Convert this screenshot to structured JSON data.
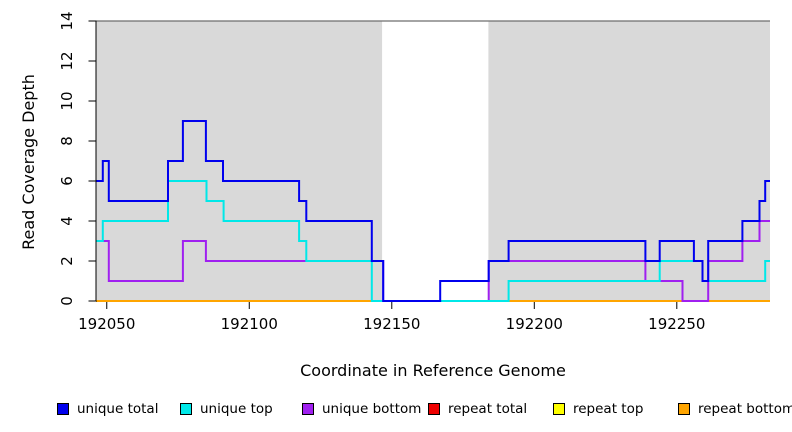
{
  "chart_data": {
    "type": "line",
    "subtype": "step-coverage-plot",
    "title": "",
    "xlabel": "Coordinate in Reference Genome",
    "ylabel": "Read Coverage Depth",
    "xlim": [
      192046.4,
      192282.7
    ],
    "ylim": [
      0,
      14
    ],
    "x_ticks": [
      192050,
      192100,
      192150,
      192200,
      192250
    ],
    "y_ticks": [
      0,
      2,
      4,
      6,
      8,
      10,
      12,
      14
    ],
    "grid": false,
    "legend_position": "bottom",
    "panel_background": "#d9d9d9",
    "unshaded_region": {
      "x_start": 192146.6,
      "x_end": 192183.9,
      "fill": "#ffffff"
    },
    "top_boundary_line": {
      "y": 14,
      "color": "#6e6e6e"
    },
    "axis_color": "#000000",
    "draw_order": [
      "repeat total",
      "repeat top",
      "repeat bottom",
      "unique bottom",
      "unique top",
      "unique total"
    ],
    "series": [
      {
        "name": "unique total",
        "color": "#0000EE",
        "points": [
          [
            192046.4,
            6
          ],
          [
            192048.6,
            7
          ],
          [
            192050.7,
            5
          ],
          [
            192071.5,
            7
          ],
          [
            192076.7,
            9
          ],
          [
            192084.8,
            7
          ],
          [
            192090.8,
            6
          ],
          [
            192117.5,
            5
          ],
          [
            192120,
            4
          ],
          [
            192143,
            2
          ],
          [
            192147,
            0
          ],
          [
            192167,
            1
          ],
          [
            192184,
            2
          ],
          [
            192191,
            3
          ],
          [
            192239,
            2
          ],
          [
            192244,
            3
          ],
          [
            192256,
            2
          ],
          [
            192259,
            1
          ],
          [
            192261,
            3
          ],
          [
            192273,
            4
          ],
          [
            192279,
            5
          ],
          [
            192281,
            6
          ]
        ]
      },
      {
        "name": "unique top",
        "color": "#00E8E8",
        "points": [
          [
            192046.4,
            3
          ],
          [
            192048.6,
            4
          ],
          [
            192071.5,
            6
          ],
          [
            192085,
            5
          ],
          [
            192091,
            4
          ],
          [
            192117.5,
            3
          ],
          [
            192120,
            2
          ],
          [
            192143,
            0
          ],
          [
            192191,
            1
          ],
          [
            192244,
            2
          ],
          [
            192259,
            1
          ],
          [
            192281,
            2
          ]
        ]
      },
      {
        "name": "unique bottom",
        "color": "#A020F0",
        "points": [
          [
            192046.4,
            3
          ],
          [
            192050.7,
            1
          ],
          [
            192076.7,
            3
          ],
          [
            192084.8,
            2
          ],
          [
            192147,
            0
          ],
          [
            192184,
            2
          ],
          [
            192239,
            1
          ],
          [
            192252,
            0
          ],
          [
            192261,
            2
          ],
          [
            192273,
            3
          ],
          [
            192279,
            4
          ]
        ]
      },
      {
        "name": "repeat total",
        "color": "#EE0000",
        "points": [
          [
            192046.4,
            0
          ]
        ]
      },
      {
        "name": "repeat top",
        "color": "#FFFF00",
        "points": [
          [
            192046.4,
            0
          ]
        ]
      },
      {
        "name": "repeat bottom",
        "color": "#FFA500",
        "points": [
          [
            192046.4,
            0
          ]
        ]
      }
    ]
  }
}
